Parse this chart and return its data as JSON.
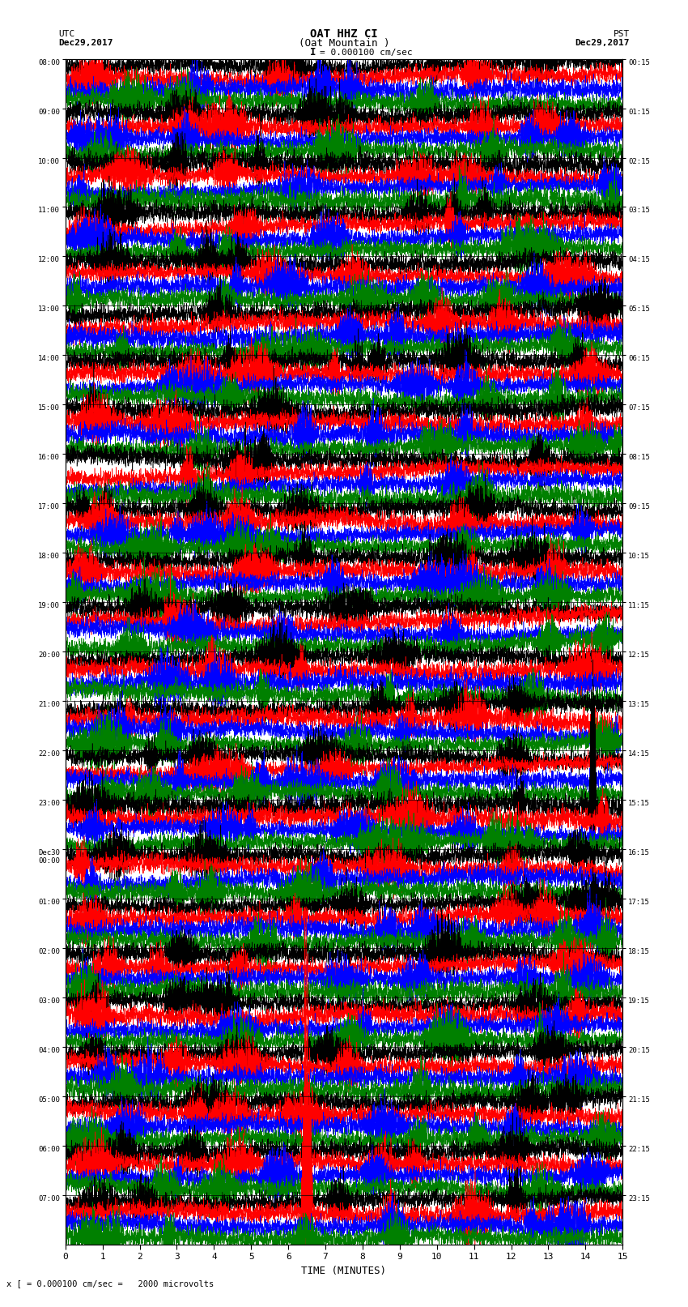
{
  "title_line1": "OAT HHZ CI",
  "title_line2": "(Oat Mountain )",
  "scale_text": "= 0.000100 cm/sec",
  "scale_bracket": "I",
  "footer_text": "x [ = 0.000100 cm/sec =   2000 microvolts",
  "utc_label": "UTC",
  "utc_date": "Dec29,2017",
  "pst_label": "PST",
  "pst_date": "Dec29,2017",
  "xlabel": "TIME (MINUTES)",
  "left_times_utc": [
    "08:00",
    "09:00",
    "10:00",
    "11:00",
    "12:00",
    "13:00",
    "14:00",
    "15:00",
    "16:00",
    "17:00",
    "18:00",
    "19:00",
    "20:00",
    "21:00",
    "22:00",
    "23:00",
    "Dec30\n00:00",
    "01:00",
    "02:00",
    "03:00",
    "04:00",
    "05:00",
    "06:00",
    "07:00"
  ],
  "right_times_pst": [
    "00:15",
    "01:15",
    "02:15",
    "03:15",
    "04:15",
    "05:15",
    "06:15",
    "07:15",
    "08:15",
    "09:15",
    "10:15",
    "11:15",
    "12:15",
    "13:15",
    "14:15",
    "15:15",
    "16:15",
    "17:15",
    "18:15",
    "19:15",
    "20:15",
    "21:15",
    "22:15",
    "23:15"
  ],
  "n_rows": 24,
  "traces_per_row": 4,
  "colors": [
    "black",
    "red",
    "blue",
    "green"
  ],
  "x_min": 0,
  "x_max": 15,
  "x_ticks": [
    0,
    1,
    2,
    3,
    4,
    5,
    6,
    7,
    8,
    9,
    10,
    11,
    12,
    13,
    14,
    15
  ],
  "bg_color": "white",
  "fig_width": 8.5,
  "fig_height": 16.13,
  "dpi": 100
}
